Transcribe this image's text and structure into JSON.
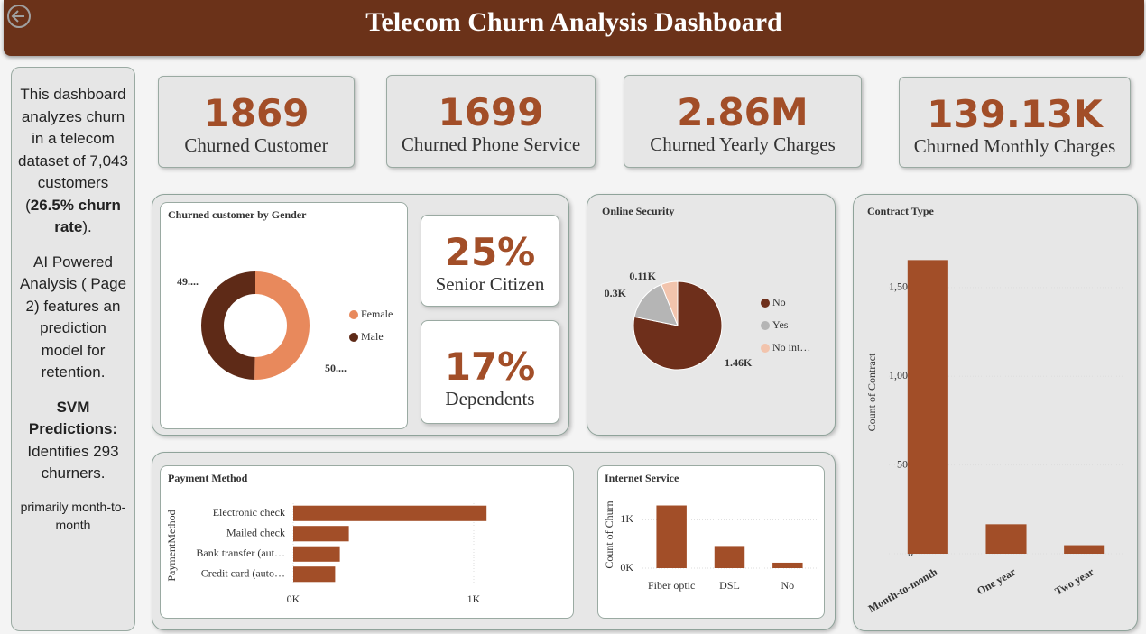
{
  "header": {
    "title": "Telecom Churn Analysis Dashboard"
  },
  "sidebar": {
    "p1": [
      "This dashboard analyzes churn in a telecom dataset of 7,043 customers (",
      "26.5% churn rate",
      ")."
    ],
    "p2": "AI Powered Analysis ( Page 2) features an prediction model for retention.",
    "p3": [
      "SVM Predictions:",
      " Identifies 293 churners."
    ],
    "p4": "primarily month-to-month"
  },
  "kpis": [
    {
      "value": "1869",
      "label": "Churned Customer"
    },
    {
      "value": "1699",
      "label": "Churned  Phone Service"
    },
    {
      "value": "2.86M",
      "label": "Churned Yearly Charges"
    },
    {
      "value": "139.13K",
      "label": "Churned Monthly Charges"
    },
    {
      "value": "25%",
      "label": "Senior Citizen"
    },
    {
      "value": "17%",
      "label": "Dependents"
    }
  ],
  "chart_data": [
    {
      "type": "donut",
      "title": "Churned customer by Gender",
      "categories": [
        "Female",
        "Male"
      ],
      "values": [
        50.24,
        49.76
      ],
      "value_labels": [
        "50....",
        "49...."
      ],
      "colors": [
        "#e8895c",
        "#5e2a17"
      ]
    },
    {
      "type": "pie",
      "title": "Online Security",
      "categories": [
        "No",
        "Yes",
        "No int…"
      ],
      "values": [
        1461,
        295,
        113
      ],
      "value_labels": [
        "1.46K",
        "0.3K",
        "0.11K"
      ],
      "colors": [
        "#6e2f1b",
        "#b5b5b5",
        "#f2c4ad"
      ]
    },
    {
      "type": "bar",
      "title": "Contract Type",
      "y_label": "Count of Contract",
      "categories": [
        "Month-to-month",
        "One year",
        "Two year"
      ],
      "values": [
        1655,
        166,
        48
      ],
      "color": "#a24e28",
      "ylim": [
        0,
        1850
      ],
      "yticks": [
        0,
        500,
        {
          "value": 1000,
          "label": "1,000"
        },
        {
          "value": 1500,
          "label": "1,500"
        }
      ],
      "grid": true
    },
    {
      "type": "barh",
      "title": "Payment Method",
      "y_label": "PaymentMethod",
      "categories": [
        "Electronic check",
        "Mailed check",
        "Bank transfer (aut…",
        "Credit card (auto…"
      ],
      "values": [
        1071,
        308,
        258,
        232
      ],
      "color": "#a24e28",
      "xlim": [
        0,
        1500
      ],
      "xticks": [
        {
          "value": 0,
          "label": "0K"
        },
        {
          "value": 1000,
          "label": "1K"
        }
      ],
      "grid": true
    },
    {
      "type": "bar",
      "title": "Internet Service",
      "y_label": "Count of Churn",
      "categories": [
        "Fiber optic",
        "DSL",
        "No"
      ],
      "values": [
        1297,
        459,
        113
      ],
      "color": "#a24e28",
      "ylim": [
        0,
        1400
      ],
      "yticks": [
        {
          "value": 0,
          "label": "0K"
        },
        {
          "value": 1000,
          "label": "1K"
        }
      ],
      "grid": true
    }
  ]
}
